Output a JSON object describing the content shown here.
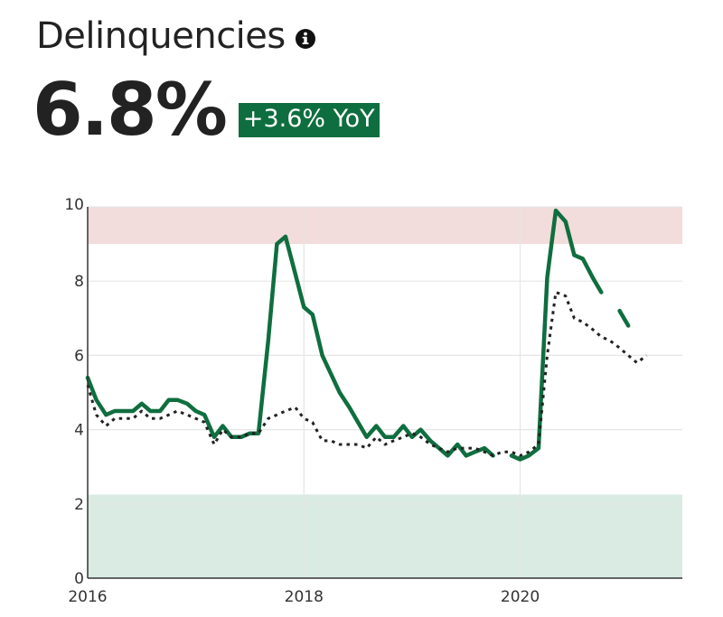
{
  "header": {
    "title": "Delinquencies",
    "info_icon": "info-icon",
    "value": "6.8%",
    "badge": "+3.6% YoY"
  },
  "colors": {
    "primary_line": "#0f6e3f",
    "comparison_line": "#222222",
    "danger_band": "#f2dcdc",
    "safe_band": "#d9ebe2",
    "badge_bg": "#0f6e3f",
    "grid": "#e6e6e6"
  },
  "chart_data": {
    "type": "line",
    "xlim": [
      2016,
      2021.5
    ],
    "ylim": [
      0,
      10
    ],
    "x_ticks": [
      2016,
      2018,
      2020
    ],
    "x_tick_labels": [
      "2016",
      "2018",
      "2020"
    ],
    "y_ticks": [
      0,
      2,
      4,
      6,
      8,
      10
    ],
    "y_tick_labels": [
      "0",
      "2",
      "4",
      "6",
      "8",
      "10"
    ],
    "grid": true,
    "bands": [
      {
        "y0": 9,
        "y1": 10,
        "color": "#f2dcdc"
      },
      {
        "y0": 0,
        "y1": 2.25,
        "color": "#d9ebe2"
      }
    ],
    "series": [
      {
        "style": "solid",
        "color": "#0f6e3f",
        "segments": [
          [
            [
              2016.0,
              5.4
            ],
            [
              2016.08,
              4.8
            ],
            [
              2016.17,
              4.4
            ],
            [
              2016.25,
              4.5
            ],
            [
              2016.33,
              4.5
            ],
            [
              2016.42,
              4.5
            ],
            [
              2016.5,
              4.7
            ],
            [
              2016.58,
              4.5
            ],
            [
              2016.67,
              4.5
            ],
            [
              2016.75,
              4.8
            ],
            [
              2016.83,
              4.8
            ],
            [
              2016.92,
              4.7
            ],
            [
              2017.0,
              4.5
            ],
            [
              2017.08,
              4.4
            ],
            [
              2017.17,
              3.8
            ],
            [
              2017.25,
              4.1
            ],
            [
              2017.33,
              3.8
            ],
            [
              2017.42,
              3.8
            ],
            [
              2017.5,
              3.9
            ],
            [
              2017.58,
              3.9
            ],
            [
              2017.67,
              6.4
            ],
            [
              2017.75,
              9.0
            ],
            [
              2017.83,
              9.2
            ],
            [
              2017.92,
              8.2
            ],
            [
              2018.0,
              7.3
            ],
            [
              2018.08,
              7.1
            ],
            [
              2018.17,
              6.0
            ],
            [
              2018.25,
              5.5
            ],
            [
              2018.33,
              5.0
            ],
            [
              2018.42,
              4.6
            ],
            [
              2018.5,
              4.2
            ],
            [
              2018.58,
              3.8
            ],
            [
              2018.67,
              4.1
            ],
            [
              2018.75,
              3.8
            ],
            [
              2018.83,
              3.8
            ],
            [
              2018.92,
              4.1
            ],
            [
              2019.0,
              3.8
            ],
            [
              2019.08,
              4.0
            ],
            [
              2019.17,
              3.7
            ],
            [
              2019.25,
              3.5
            ],
            [
              2019.33,
              3.3
            ],
            [
              2019.42,
              3.6
            ],
            [
              2019.5,
              3.3
            ],
            [
              2019.58,
              3.4
            ],
            [
              2019.67,
              3.5
            ],
            [
              2019.75,
              3.3
            ]
          ],
          [
            [
              2019.92,
              3.3
            ],
            [
              2020.0,
              3.2
            ],
            [
              2020.08,
              3.3
            ],
            [
              2020.17,
              3.5
            ],
            [
              2020.25,
              8.1
            ],
            [
              2020.33,
              9.9
            ],
            [
              2020.42,
              9.6
            ],
            [
              2020.5,
              8.7
            ],
            [
              2020.58,
              8.6
            ],
            [
              2020.67,
              8.1
            ],
            [
              2020.75,
              7.7
            ]
          ],
          [
            [
              2020.92,
              7.2
            ],
            [
              2021.0,
              6.8
            ]
          ]
        ]
      },
      {
        "style": "dotted",
        "color": "#222222",
        "segments": [
          [
            [
              2016.0,
              5.2
            ],
            [
              2016.08,
              4.4
            ],
            [
              2016.17,
              4.1
            ],
            [
              2016.25,
              4.3
            ],
            [
              2016.33,
              4.3
            ],
            [
              2016.42,
              4.3
            ],
            [
              2016.5,
              4.5
            ],
            [
              2016.58,
              4.3
            ],
            [
              2016.67,
              4.3
            ],
            [
              2016.75,
              4.4
            ],
            [
              2016.83,
              4.5
            ],
            [
              2016.92,
              4.4
            ],
            [
              2017.0,
              4.3
            ],
            [
              2017.08,
              4.2
            ],
            [
              2017.17,
              3.6
            ],
            [
              2017.25,
              4.0
            ],
            [
              2017.33,
              3.8
            ],
            [
              2017.42,
              3.8
            ],
            [
              2017.5,
              3.9
            ],
            [
              2017.58,
              3.9
            ],
            [
              2017.67,
              4.3
            ],
            [
              2017.75,
              4.4
            ],
            [
              2017.83,
              4.5
            ],
            [
              2017.92,
              4.6
            ],
            [
              2018.0,
              4.3
            ],
            [
              2018.08,
              4.2
            ],
            [
              2018.17,
              3.7
            ],
            [
              2018.25,
              3.7
            ],
            [
              2018.33,
              3.6
            ],
            [
              2018.42,
              3.6
            ],
            [
              2018.5,
              3.6
            ],
            [
              2018.58,
              3.5
            ],
            [
              2018.67,
              3.8
            ],
            [
              2018.75,
              3.6
            ],
            [
              2018.83,
              3.7
            ],
            [
              2018.92,
              3.8
            ],
            [
              2019.0,
              3.9
            ],
            [
              2019.08,
              3.8
            ],
            [
              2019.17,
              3.6
            ],
            [
              2019.25,
              3.5
            ],
            [
              2019.33,
              3.4
            ],
            [
              2019.42,
              3.5
            ],
            [
              2019.5,
              3.5
            ],
            [
              2019.58,
              3.5
            ],
            [
              2019.67,
              3.4
            ],
            [
              2019.75,
              3.3
            ],
            [
              2019.83,
              3.4
            ],
            [
              2019.92,
              3.4
            ],
            [
              2020.0,
              3.3
            ],
            [
              2020.08,
              3.4
            ],
            [
              2020.17,
              3.6
            ],
            [
              2020.25,
              6.0
            ],
            [
              2020.33,
              7.7
            ],
            [
              2020.42,
              7.6
            ],
            [
              2020.5,
              7.0
            ],
            [
              2020.58,
              6.9
            ],
            [
              2020.67,
              6.7
            ],
            [
              2020.75,
              6.5
            ],
            [
              2020.83,
              6.4
            ],
            [
              2020.92,
              6.2
            ],
            [
              2021.0,
              6.0
            ],
            [
              2021.08,
              5.8
            ],
            [
              2021.17,
              6.0
            ]
          ]
        ]
      }
    ]
  }
}
